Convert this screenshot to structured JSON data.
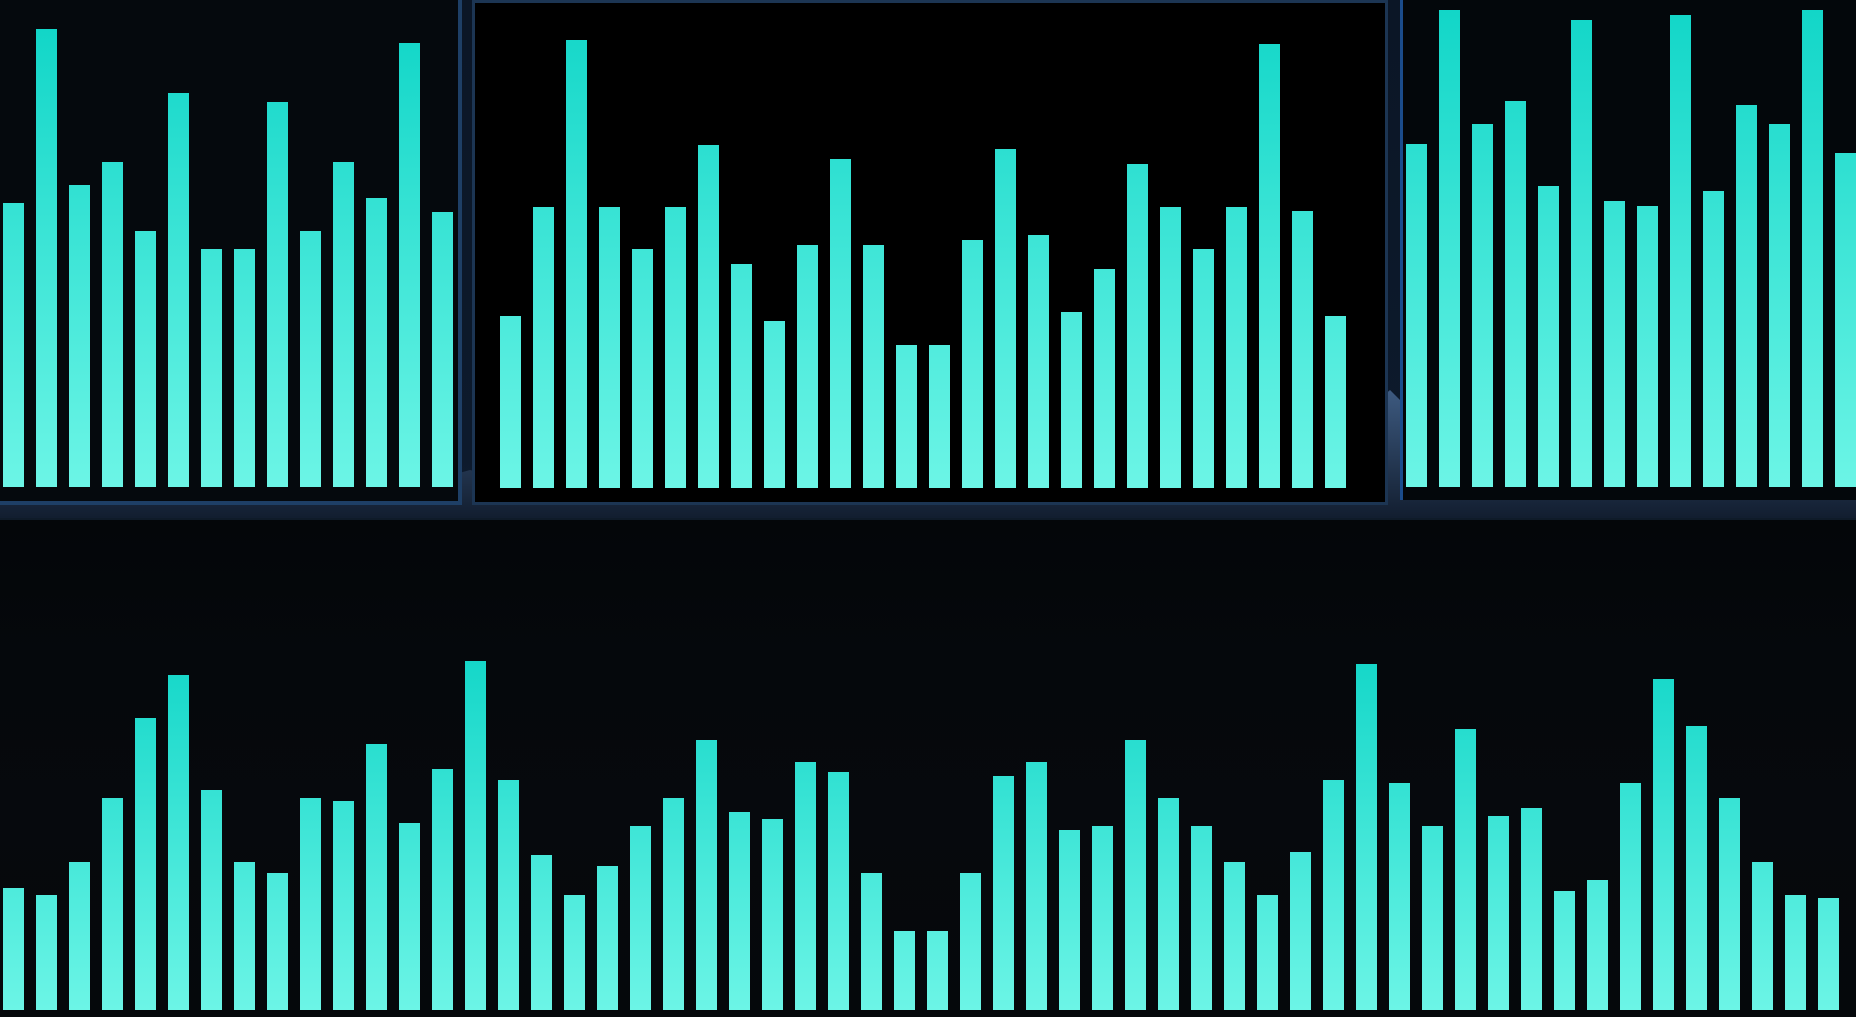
{
  "colors": {
    "bar_top": "#12d6c8",
    "bar_bottom": "#6cf5e6",
    "frame_blue": "#1e3f66",
    "frame_accent": "#1b4c8c"
  },
  "windows": [
    {
      "name": "visualizer-window-top-left",
      "chart_data": {
        "type": "bar",
        "max": 1,
        "values": [
          0.62,
          1.0,
          0.66,
          0.71,
          0.56,
          0.86,
          0.52,
          0.52,
          0.84,
          0.56,
          0.71,
          0.63,
          0.97,
          0.6
        ]
      }
    },
    {
      "name": "visualizer-window-top-center",
      "chart_data": {
        "type": "bar",
        "max": 1,
        "values": [
          0.36,
          0.59,
          0.94,
          0.59,
          0.5,
          0.59,
          0.72,
          0.47,
          0.35,
          0.51,
          0.69,
          0.51,
          0.3,
          0.3,
          0.52,
          0.71,
          0.53,
          0.37,
          0.46,
          0.68,
          0.59,
          0.5,
          0.59,
          0.93,
          0.58,
          0.36
        ]
      }
    },
    {
      "name": "visualizer-window-top-right",
      "chart_data": {
        "type": "bar",
        "max": 1,
        "values": [
          0.72,
          1.0,
          0.76,
          0.81,
          0.63,
          0.98,
          0.6,
          0.59,
          0.99,
          0.62,
          0.8,
          0.76,
          1.0,
          0.7
        ]
      }
    },
    {
      "name": "visualizer-window-bottom",
      "chart_data": {
        "type": "bar",
        "max": 1,
        "values": [
          0.34,
          0.32,
          0.41,
          0.59,
          0.81,
          0.93,
          0.61,
          0.41,
          0.38,
          0.59,
          0.58,
          0.74,
          0.52,
          0.67,
          0.97,
          0.64,
          0.43,
          0.32,
          0.4,
          0.51,
          0.59,
          0.75,
          0.55,
          0.53,
          0.69,
          0.66,
          0.38,
          0.22,
          0.22,
          0.38,
          0.65,
          0.69,
          0.5,
          0.51,
          0.75,
          0.59,
          0.51,
          0.41,
          0.32,
          0.44,
          0.64,
          0.96,
          0.63,
          0.51,
          0.78,
          0.54,
          0.56,
          0.33,
          0.36,
          0.63,
          0.92,
          0.79,
          0.59,
          0.41,
          0.32,
          0.31
        ]
      }
    }
  ]
}
